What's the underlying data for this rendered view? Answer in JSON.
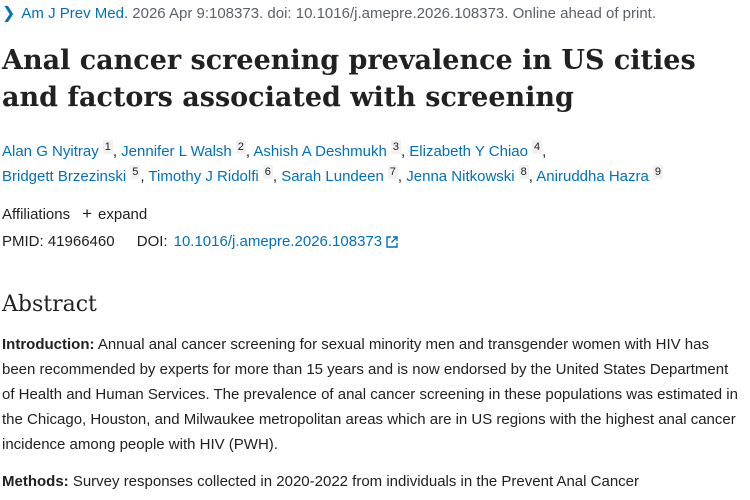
{
  "citation": {
    "journal": "Am J Prev Med",
    "details": ". 2026 Apr 9:108373. doi: 10.1016/j.amepre.2026.108373. Online ahead of print."
  },
  "title": "Anal cancer screening prevalence in US cities and factors associated with screening",
  "authors": [
    {
      "name": "Alan G Nyitray",
      "sup": "1",
      "sep": ","
    },
    {
      "name": "Jennifer L Walsh",
      "sup": "2",
      "sep": ","
    },
    {
      "name": "Ashish A Deshmukh",
      "sup": "3",
      "sep": ","
    },
    {
      "name": "Elizabeth Y Chiao",
      "sup": "4",
      "sep": ","
    },
    {
      "name": "Bridgett Brzezinski",
      "sup": "5",
      "sep": ","
    },
    {
      "name": "Timothy J Ridolfi",
      "sup": "6",
      "sep": ","
    },
    {
      "name": "Sarah Lundeen",
      "sup": "7",
      "sep": ","
    },
    {
      "name": "Jenna Nitkowski",
      "sup": "8",
      "sep": ","
    },
    {
      "name": "Aniruddha Hazra",
      "sup": "9",
      "sep": ""
    }
  ],
  "affiliations": {
    "label": "Affiliations",
    "plus": "+",
    "expand": "expand"
  },
  "ids": {
    "pmid_label": "PMID:",
    "pmid": "41966460",
    "doi_label": "DOI:",
    "doi": "10.1016/j.amepre.2026.108373"
  },
  "abstract": {
    "heading": "Abstract",
    "intro_label": "Introduction:",
    "intro_text": " Annual anal cancer screening for sexual minority men and transgender women with HIV has been recommended by experts for more than 15 years and is now endorsed by the United States Department of Health and Human Services. The prevalence of anal cancer screening in these populations was estimated in the Chicago, Houston, and Milwaukee metropolitan areas which are in US regions with the highest anal cancer incidence among people with HIV (PWH).",
    "methods_label": "Methods:",
    "methods_text": " Survey responses collected in 2020-2022 from individuals in the Prevent Anal Cancer"
  }
}
